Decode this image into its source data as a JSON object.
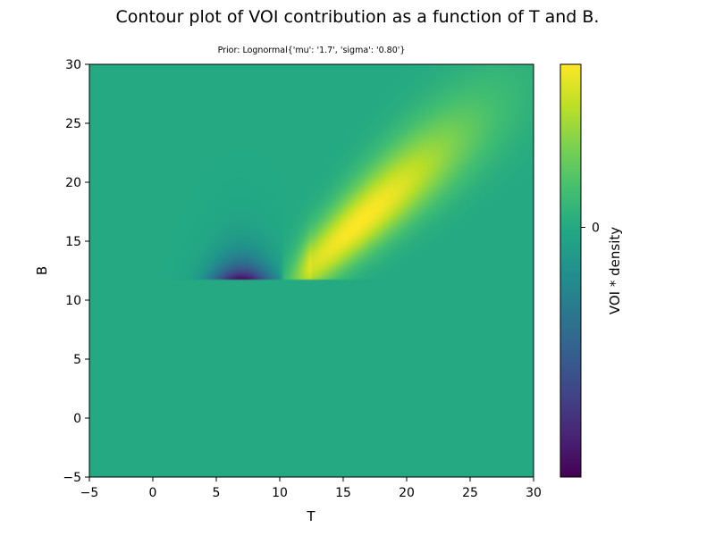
{
  "title": "Contour plot of VOI contribution as a function of T and B.",
  "subtitle": "Prior: Lognormal{'mu': '1.7', 'sigma': '0.80'}",
  "chart_data": {
    "type": "heatmap",
    "colormap": "viridis",
    "xlabel": "T",
    "ylabel": "B",
    "xlim": [
      -5,
      30
    ],
    "ylim": [
      -5,
      30
    ],
    "x_ticks": [
      -5,
      0,
      5,
      10,
      15,
      20,
      25,
      30
    ],
    "y_ticks": [
      -5,
      0,
      5,
      10,
      15,
      20,
      25,
      30
    ],
    "colorbar": {
      "label": "VOI * density",
      "ticks": [
        0
      ],
      "zero_fraction": 0.605
    },
    "regions": [
      {
        "description": "negative lobe (dark purple)",
        "T_center": 7,
        "B_min": 11.8,
        "B_peak": 12.1,
        "sign": "negative"
      },
      {
        "description": "positive ridge (yellow)",
        "T_range": [
          10.5,
          30
        ],
        "B_at_T": [
          [
            10.5,
            11.8
          ],
          [
            16,
            15.5
          ],
          [
            30,
            29
          ]
        ],
        "peak": [
          16.5,
          16.5
        ],
        "sign": "positive"
      }
    ],
    "grid": false
  }
}
